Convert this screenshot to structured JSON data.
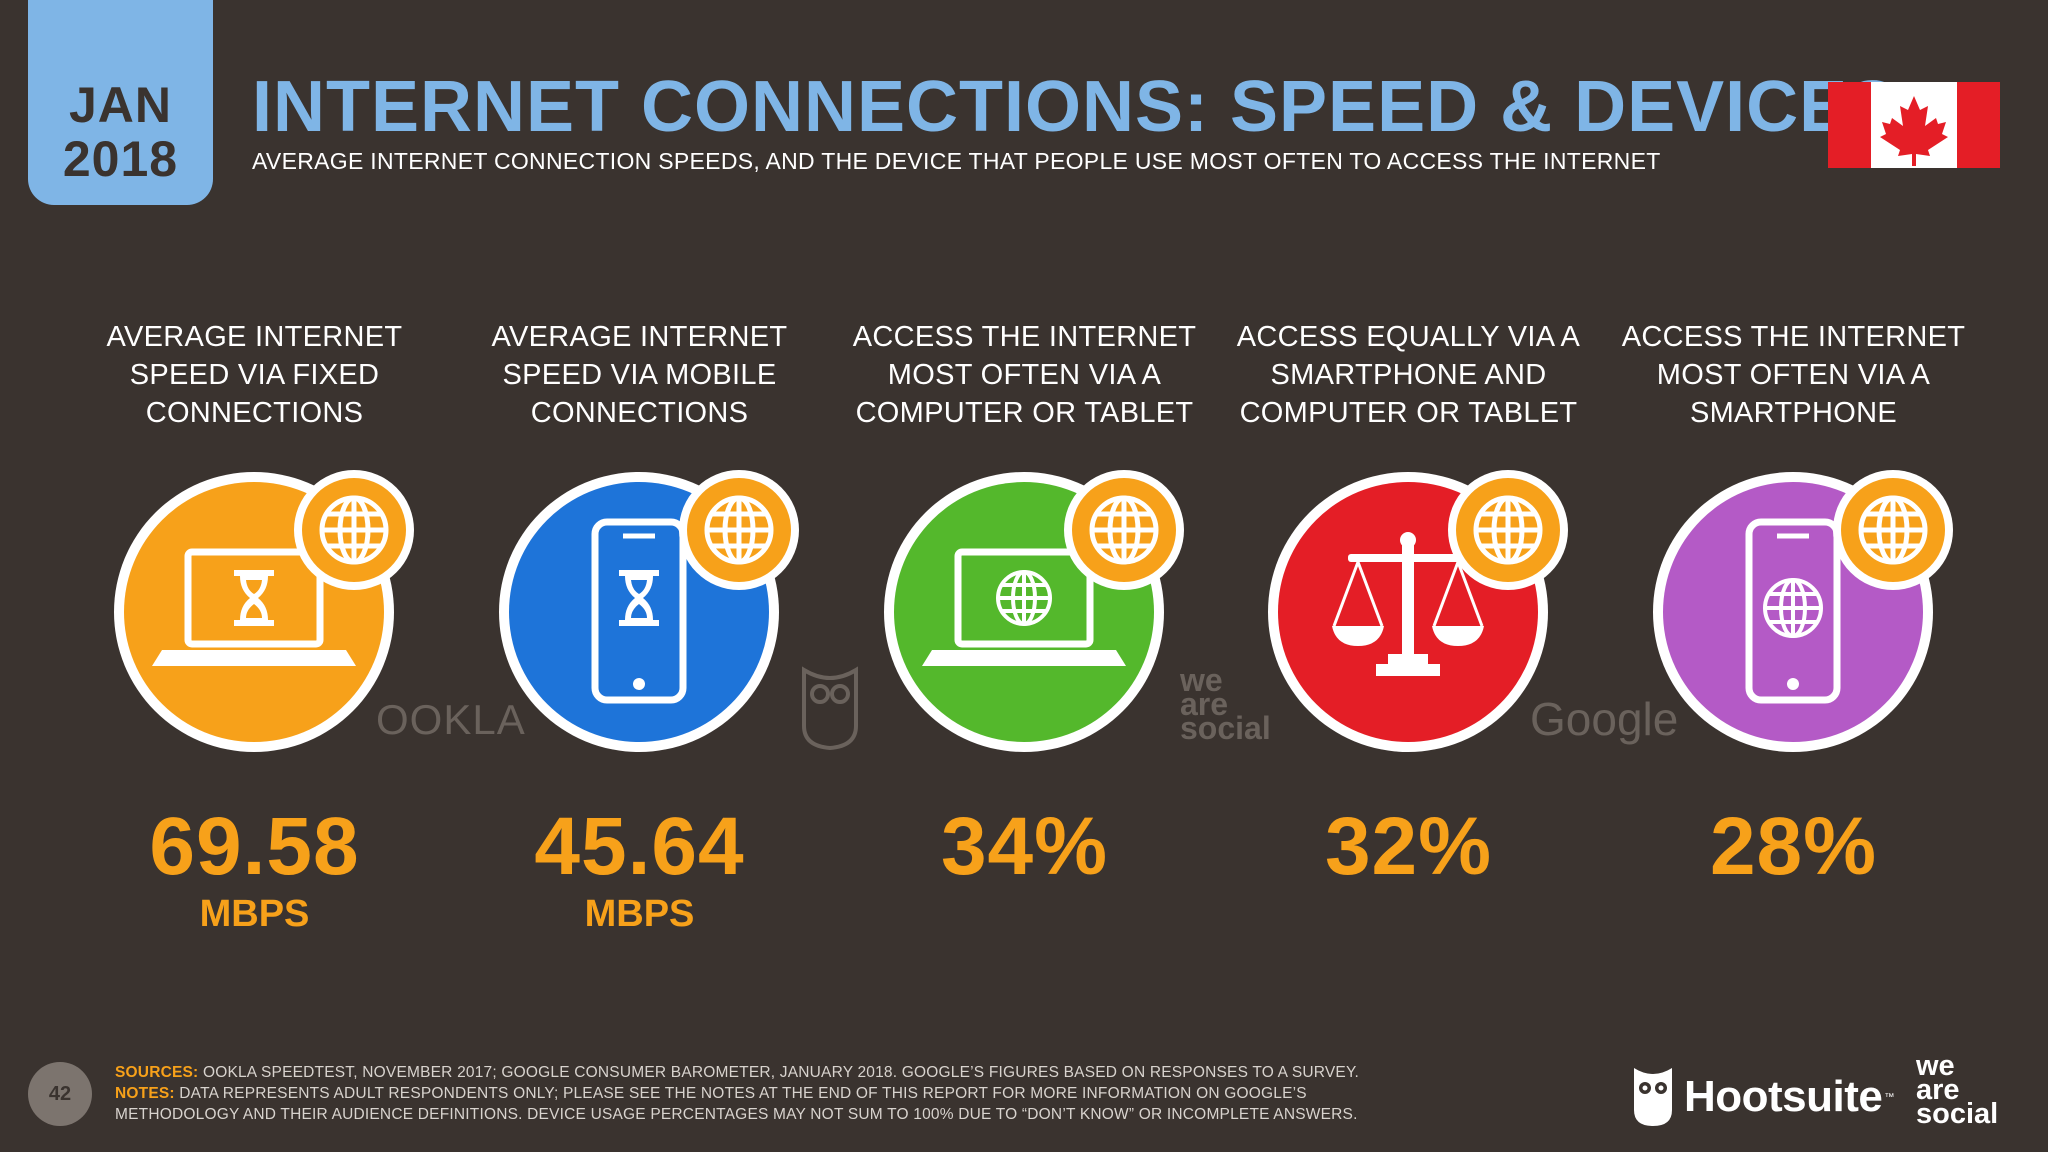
{
  "header": {
    "date_month": "JAN",
    "date_year": "2018",
    "title": "INTERNET CONNECTIONS: SPEED & DEVICES",
    "subtitle": "AVERAGE INTERNET CONNECTION SPEEDS, AND THE DEVICE THAT PEOPLE USE MOST OFTEN TO ACCESS THE INTERNET",
    "flag_icon": "canada-flag-icon"
  },
  "colors": {
    "background": "#3a332f",
    "title_blue": "#7fb5e6",
    "accent_orange": "#f7a11a",
    "blue": "#1e74d9",
    "green": "#54b82c",
    "red": "#e41e26",
    "purple": "#b45ac6"
  },
  "stats": [
    {
      "label": "AVERAGE INTERNET SPEED VIA FIXED CONNECTIONS",
      "value": "69.58",
      "unit": "MBPS",
      "icon": "laptop-hourglass-icon",
      "color": "#f7a11a"
    },
    {
      "label": "AVERAGE INTERNET SPEED VIA MOBILE CONNECTIONS",
      "value": "45.64",
      "unit": "MBPS",
      "icon": "phone-hourglass-icon",
      "color": "#1e74d9"
    },
    {
      "label": "ACCESS THE INTERNET MOST OFTEN VIA A COMPUTER OR TABLET",
      "value": "34%",
      "unit": "",
      "icon": "laptop-globe-icon",
      "color": "#54b82c"
    },
    {
      "label": "ACCESS EQUALLY VIA A SMARTPHONE AND COMPUTER OR TABLET",
      "value": "32%",
      "unit": "",
      "icon": "scales-icon",
      "color": "#e41e26"
    },
    {
      "label": "ACCESS THE INTERNET MOST OFTEN VIA A SMARTPHONE",
      "value": "28%",
      "unit": "",
      "icon": "phone-globe-icon",
      "color": "#b45ac6"
    }
  ],
  "watermarks": {
    "ookla": "OOKLA",
    "we": "we",
    "are": "are",
    "social": "social",
    "google": "Google"
  },
  "footer": {
    "page_number": "42",
    "sources_label": "SOURCES:",
    "sources_text": "OOKLA SPEEDTEST, NOVEMBER 2017; GOOGLE CONSUMER BAROMETER, JANUARY 2018. GOOGLE’S FIGURES BASED ON RESPONSES TO A SURVEY.",
    "notes_label": "NOTES:",
    "notes_text": "DATA REPRESENTS ADULT RESPONDENTS ONLY; PLEASE SEE THE NOTES AT THE END OF THIS REPORT FOR MORE INFORMATION ON GOOGLE’S METHODOLOGY AND THEIR AUDIENCE DEFINITIONS. DEVICE USAGE PERCENTAGES MAY NOT SUM TO 100% DUE TO “DON’T KNOW” OR INCOMPLETE ANSWERS.",
    "hootsuite": "Hootsuite",
    "hootsuite_tm": "™",
    "was_we": "we",
    "was_are": "are",
    "was_social": "social"
  }
}
